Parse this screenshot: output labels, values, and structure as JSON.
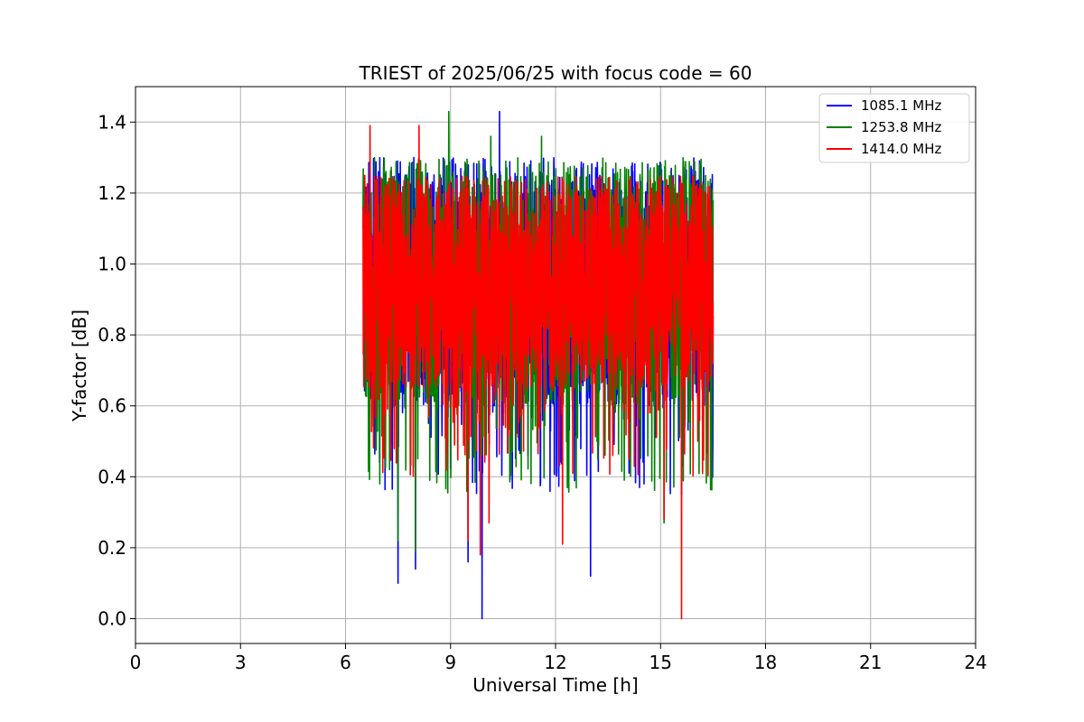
{
  "chart_data": {
    "type": "line",
    "title": "TRIEST of 2025/06/25 with focus code = 60",
    "xlabel": "Universal Time [h]",
    "ylabel": "Y-factor [dB]",
    "xlim": [
      0,
      24
    ],
    "ylim": [
      -0.07,
      1.5
    ],
    "xticks": [
      "0",
      "3",
      "6",
      "9",
      "12",
      "15",
      "18",
      "21",
      "24"
    ],
    "yticks": [
      "0.0",
      "0.2",
      "0.4",
      "0.6",
      "0.8",
      "1.0",
      "1.2",
      "1.4"
    ],
    "grid": true,
    "legend_position": "top-right",
    "series": [
      {
        "name": "1085.1 MHz",
        "color": "#0000ff",
        "time_range": [
          6.5,
          16.5
        ],
        "typical_range": [
          0.6,
          1.3
        ],
        "notable_values": [
          {
            "x": 7.5,
            "y": 0.1
          },
          {
            "x": 8.0,
            "y": 0.14
          },
          {
            "x": 9.5,
            "y": 0.16
          },
          {
            "x": 9.9,
            "y": 0.0
          },
          {
            "x": 10.4,
            "y": 1.43
          },
          {
            "x": 13.0,
            "y": 0.12
          },
          {
            "x": 14.4,
            "y": 0.37
          },
          {
            "x": 15.6,
            "y": 0.35
          }
        ]
      },
      {
        "name": "1253.8 MHz",
        "color": "#008000",
        "time_range": [
          6.5,
          16.5
        ],
        "typical_range": [
          0.6,
          1.3
        ],
        "notable_values": [
          {
            "x": 8.95,
            "y": 1.43
          },
          {
            "x": 10.15,
            "y": 1.36
          },
          {
            "x": 11.6,
            "y": 1.36
          },
          {
            "x": 7.5,
            "y": 0.22
          },
          {
            "x": 8.0,
            "y": 0.19
          },
          {
            "x": 15.1,
            "y": 0.27
          }
        ]
      },
      {
        "name": "1414.0 MHz",
        "color": "#ff0000",
        "time_range": [
          6.5,
          16.5
        ],
        "typical_range": [
          0.65,
          1.25
        ],
        "notable_values": [
          {
            "x": 6.7,
            "y": 1.39
          },
          {
            "x": 8.1,
            "y": 1.39
          },
          {
            "x": 9.5,
            "y": 0.22
          },
          {
            "x": 9.85,
            "y": 0.18
          },
          {
            "x": 10.1,
            "y": 0.27
          },
          {
            "x": 12.2,
            "y": 0.21
          },
          {
            "x": 15.1,
            "y": 0.28
          },
          {
            "x": 15.6,
            "y": 0.0
          }
        ]
      }
    ]
  }
}
